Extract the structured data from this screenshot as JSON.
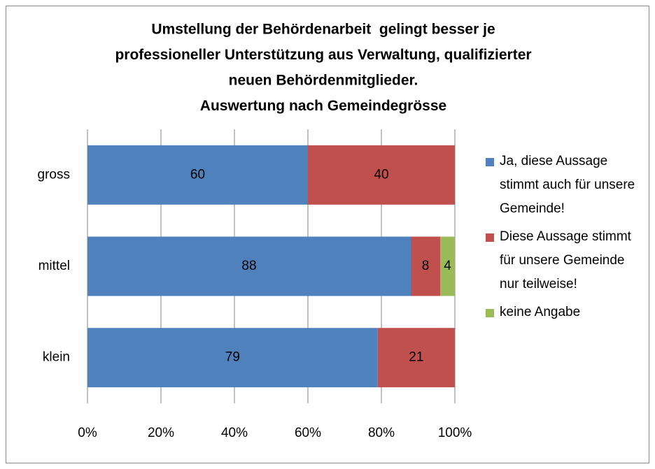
{
  "chart_data": {
    "type": "stacked-bar-horizontal",
    "title": [
      "Umstellung der Behördenarbeit  gelingt besser je",
      "professioneller Unterstützung aus Verwaltung, qualifizierter",
      "neuen Behördenmitglieder.",
      "Auswertung nach Gemeindegrösse"
    ],
    "categories": [
      "gross",
      "mittel",
      "klein"
    ],
    "series": [
      {
        "name": "Ja, diese Aussage stimmt auch für unsere Gemeinde!",
        "color": "#4f81bd",
        "values": [
          60,
          88,
          79
        ]
      },
      {
        "name": "Diese Aussage stimmt für unsere Gemeinde nur teilweise!",
        "color": "#c0504d",
        "values": [
          40,
          8,
          21
        ]
      },
      {
        "name": "keine Angabe",
        "color": "#9bbb59",
        "values": [
          0,
          4,
          0
        ]
      }
    ],
    "xlim": [
      0,
      100
    ],
    "xticks": [
      {
        "value": 0,
        "label": "0%"
      },
      {
        "value": 20,
        "label": "20%"
      },
      {
        "value": 40,
        "label": "40%"
      },
      {
        "value": 60,
        "label": "60%"
      },
      {
        "value": 80,
        "label": "80%"
      },
      {
        "value": 100,
        "label": "100%"
      }
    ],
    "grid": true,
    "legend": "right"
  }
}
